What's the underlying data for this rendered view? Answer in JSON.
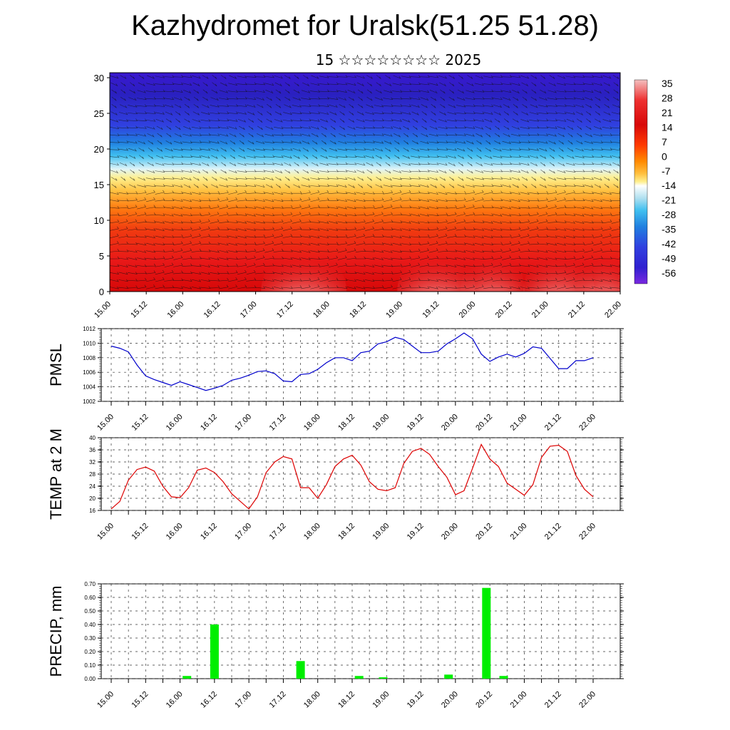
{
  "header": {
    "title": "Kazhydromet for Uralsk(51.25 51.28)",
    "subtitle": "15 ☆☆☆☆☆☆☆☆ 2025"
  },
  "chart_data": [
    {
      "type": "heatmap",
      "name_key": "temperature-cross-section",
      "x_ticks": [
        "15.00",
        "15.12",
        "16.00",
        "16.12",
        "17.00",
        "17.12",
        "18.00",
        "18.12",
        "19.00",
        "19.12",
        "20.00",
        "20.12",
        "21.00",
        "21.12",
        "22.00"
      ],
      "y_ticks": [
        0,
        5,
        10,
        15,
        20,
        25,
        30
      ],
      "ylim": [
        0,
        30.7
      ],
      "colorbar": {
        "labels": [
          "35",
          "28",
          "21",
          "14",
          "7",
          "0",
          "-7",
          "-14",
          "-21",
          "-28",
          "-35",
          "-42",
          "-49",
          "-56"
        ],
        "colors": [
          "#f2b4b4",
          "#ee2020",
          "#e01010",
          "#ff3a00",
          "#ff8a00",
          "#ffc040",
          "#ffe680",
          "#ffffff",
          "#b0e0f0",
          "#40c0f0",
          "#2080e0",
          "#3050e0",
          "#3020d0",
          "#7a28e0"
        ]
      },
      "grid": false
    },
    {
      "type": "line",
      "name_key": "pmsl",
      "ylabel": "PMSL",
      "ylim": [
        1002,
        1012
      ],
      "y_ticks": [
        1002,
        1004,
        1006,
        1008,
        1010,
        1012
      ],
      "x_ticks": [
        "15.00",
        "15.12",
        "16.00",
        "16.12",
        "17.00",
        "17.12",
        "18.00",
        "18.12",
        "19.00",
        "19.12",
        "20.00",
        "20.12",
        "21.00",
        "21.12",
        "22.00"
      ],
      "color": "#0000cc",
      "grid": true,
      "series": [
        {
          "values": [
            1009.6,
            1009.3,
            1008.8,
            1007.0,
            1005.5,
            1005.0,
            1004.6,
            1004.2,
            1004.7,
            1004.3,
            1003.9,
            1003.5,
            1003.8,
            1004.2,
            1004.9,
            1005.2,
            1005.6,
            1006.1,
            1006.2,
            1005.8,
            1004.8,
            1004.7,
            1005.7,
            1005.8,
            1006.4,
            1007.3,
            1008.0,
            1008.0,
            1007.6,
            1008.7,
            1008.9,
            1009.9,
            1010.2,
            1010.8,
            1010.5,
            1009.6,
            1008.7,
            1008.7,
            1008.9,
            1009.9,
            1010.6,
            1011.4,
            1010.6,
            1008.5,
            1007.5,
            1008.1,
            1008.5,
            1008.1,
            1008.6,
            1009.5,
            1009.3,
            1007.9,
            1006.5,
            1006.5,
            1007.6,
            1007.6,
            1008.0
          ]
        }
      ]
    },
    {
      "type": "line",
      "name_key": "temp2m",
      "ylabel": "TEMP at 2 M",
      "ylim": [
        16,
        40
      ],
      "y_ticks": [
        16,
        20,
        24,
        28,
        32,
        36,
        40
      ],
      "x_ticks": [
        "15.00",
        "15.12",
        "16.00",
        "16.12",
        "17.00",
        "17.12",
        "18.00",
        "18.12",
        "19.00",
        "19.12",
        "20.00",
        "20.12",
        "21.00",
        "21.12",
        "22.00"
      ],
      "color": "#dd0000",
      "grid": true,
      "series": [
        {
          "values": [
            16.5,
            19.0,
            26.0,
            29.5,
            30.3,
            29.0,
            24.0,
            20.5,
            20.2,
            23.5,
            29.3,
            30.0,
            28.5,
            25.5,
            21.5,
            19.0,
            16.5,
            20.5,
            28.5,
            32.0,
            33.8,
            33.0,
            23.5,
            23.5,
            20.0,
            24.5,
            30.5,
            33.0,
            34.2,
            31.0,
            25.5,
            23.0,
            22.5,
            23.5,
            31.5,
            35.5,
            36.5,
            34.5,
            30.5,
            27.0,
            21.2,
            22.5,
            30.0,
            37.8,
            33.0,
            30.5,
            25.0,
            23.0,
            21.0,
            24.5,
            33.5,
            37.2,
            37.5,
            35.5,
            27.5,
            23.0,
            20.5
          ]
        }
      ]
    },
    {
      "type": "bar",
      "name_key": "precip",
      "ylabel": "PRECIP, mm",
      "ylim": [
        0,
        0.7
      ],
      "y_ticks": [
        "0.00",
        "0.10",
        "0.20",
        "0.30",
        "0.40",
        "0.50",
        "0.60",
        "0.70"
      ],
      "x_ticks": [
        "15.00",
        "15.12",
        "16.00",
        "16.12",
        "17.00",
        "17.12",
        "18.00",
        "18.12",
        "19.00",
        "19.12",
        "20.00",
        "20.12",
        "21.00",
        "21.12",
        "22.00"
      ],
      "color": "#00ee00",
      "grid": true,
      "bars": [
        {
          "x_index": 2.2,
          "value": 0.02
        },
        {
          "x_index": 3.0,
          "value": 0.4
        },
        {
          "x_index": 5.5,
          "value": 0.13
        },
        {
          "x_index": 7.2,
          "value": 0.02
        },
        {
          "x_index": 7.9,
          "value": 0.01
        },
        {
          "x_index": 9.8,
          "value": 0.03
        },
        {
          "x_index": 10.9,
          "value": 0.67
        },
        {
          "x_index": 11.4,
          "value": 0.02
        }
      ]
    }
  ]
}
